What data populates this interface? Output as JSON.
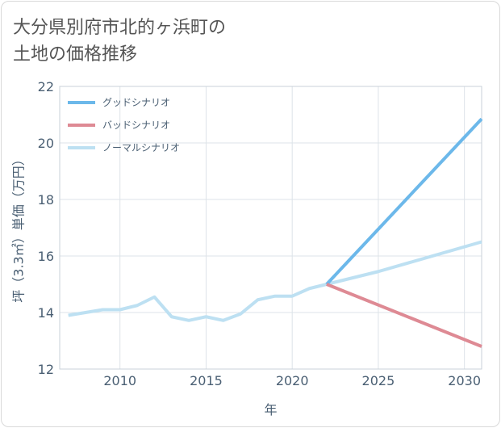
{
  "title_lines": [
    "大分県別府市北的ヶ浜町の",
    "土地の価格推移"
  ],
  "chart_data": {
    "type": "line",
    "xlabel": "年",
    "ylabel": "坪（3.3㎡）単価（万円）",
    "xlim": [
      2006.5,
      2031
    ],
    "ylim": [
      12,
      22
    ],
    "x_ticks": [
      2010,
      2015,
      2020,
      2025,
      2030
    ],
    "y_ticks": [
      12,
      14,
      16,
      18,
      20,
      22
    ],
    "grid": true,
    "legend_position": "top-left",
    "series": [
      {
        "name": "グッドシナリオ",
        "color": "#6cb8ea",
        "x": [
          2022,
          2031
        ],
        "y": [
          15.0,
          20.85
        ]
      },
      {
        "name": "バッドシナリオ",
        "color": "#de8a94",
        "x": [
          2022,
          2031
        ],
        "y": [
          15.0,
          12.8
        ]
      },
      {
        "name": "ノーマルシナリオ",
        "color": "#bde0f2",
        "x": [
          2007,
          2008,
          2009,
          2010,
          2011,
          2012,
          2013,
          2014,
          2015,
          2016,
          2017,
          2018,
          2019,
          2020,
          2021,
          2022,
          2025,
          2031
        ],
        "y": [
          13.9,
          14.0,
          14.1,
          14.1,
          14.25,
          14.55,
          13.85,
          13.72,
          13.85,
          13.72,
          13.95,
          14.45,
          14.58,
          14.58,
          14.85,
          15.0,
          15.45,
          16.5
        ]
      }
    ]
  }
}
